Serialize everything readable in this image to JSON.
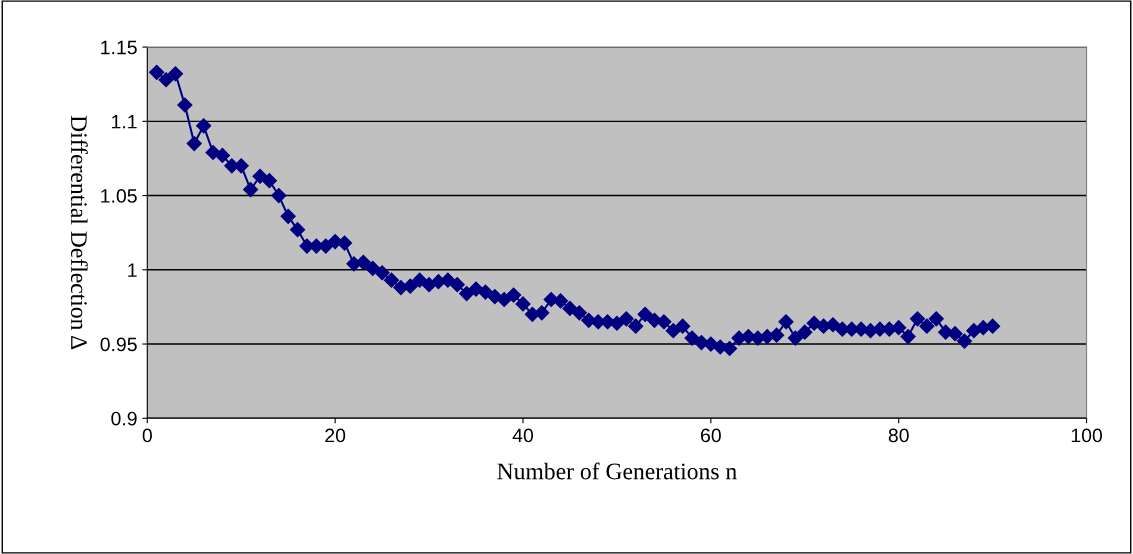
{
  "chart_data": {
    "type": "line",
    "xlabel": "Number of Generations n",
    "ylabel": "Differential Deflection Δ",
    "x": [
      1,
      2,
      3,
      4,
      5,
      6,
      7,
      8,
      9,
      10,
      11,
      12,
      13,
      14,
      15,
      16,
      17,
      18,
      19,
      20,
      21,
      22,
      23,
      24,
      25,
      26,
      27,
      28,
      29,
      30,
      31,
      32,
      33,
      34,
      35,
      36,
      37,
      38,
      39,
      40,
      41,
      42,
      43,
      44,
      45,
      46,
      47,
      48,
      49,
      50,
      51,
      52,
      53,
      54,
      55,
      56,
      57,
      58,
      59,
      60,
      61,
      62,
      63,
      64,
      65,
      66,
      67,
      68,
      69,
      70,
      71,
      72,
      73,
      74,
      75,
      76,
      77,
      78,
      79,
      80,
      81,
      82,
      83,
      84,
      85,
      86,
      87,
      88,
      89,
      90
    ],
    "series": [
      {
        "color": "#000080",
        "values": [
          1.133,
          1.128,
          1.132,
          1.111,
          1.085,
          1.097,
          1.079,
          1.077,
          1.07,
          1.07,
          1.054,
          1.063,
          1.06,
          1.05,
          1.036,
          1.027,
          1.016,
          1.016,
          1.016,
          1.019,
          1.018,
          1.004,
          1.005,
          1.001,
          0.998,
          0.993,
          0.988,
          0.989,
          0.993,
          0.99,
          0.992,
          0.993,
          0.99,
          0.984,
          0.987,
          0.985,
          0.982,
          0.98,
          0.983,
          0.977,
          0.97,
          0.971,
          0.98,
          0.979,
          0.974,
          0.971,
          0.966,
          0.965,
          0.965,
          0.964,
          0.967,
          0.962,
          0.97,
          0.966,
          0.965,
          0.959,
          0.962,
          0.954,
          0.951,
          0.95,
          0.948,
          0.947,
          0.954,
          0.955,
          0.954,
          0.955,
          0.956,
          0.965,
          0.954,
          0.958,
          0.964,
          0.962,
          0.963,
          0.96,
          0.96,
          0.96,
          0.959,
          0.96,
          0.96,
          0.961,
          0.955,
          0.967,
          0.962,
          0.967,
          0.958,
          0.957,
          0.952,
          0.959,
          0.961,
          0.962
        ]
      }
    ],
    "xlim": [
      0,
      100
    ],
    "xticks": [
      0,
      20,
      40,
      60,
      80,
      100
    ],
    "ylim": [
      0.9,
      1.15
    ],
    "yticks": [
      {
        "value": 0.9,
        "label": "0.9"
      },
      {
        "value": 0.95,
        "label": "0.95"
      },
      {
        "value": 1,
        "label": "1"
      },
      {
        "value": 1.05,
        "label": "1.05"
      },
      {
        "value": 1.1,
        "label": "1.1"
      },
      {
        "value": 1.15,
        "label": "1.15"
      }
    ],
    "grid": "y",
    "marker": "diamond",
    "line_style": "solid"
  }
}
